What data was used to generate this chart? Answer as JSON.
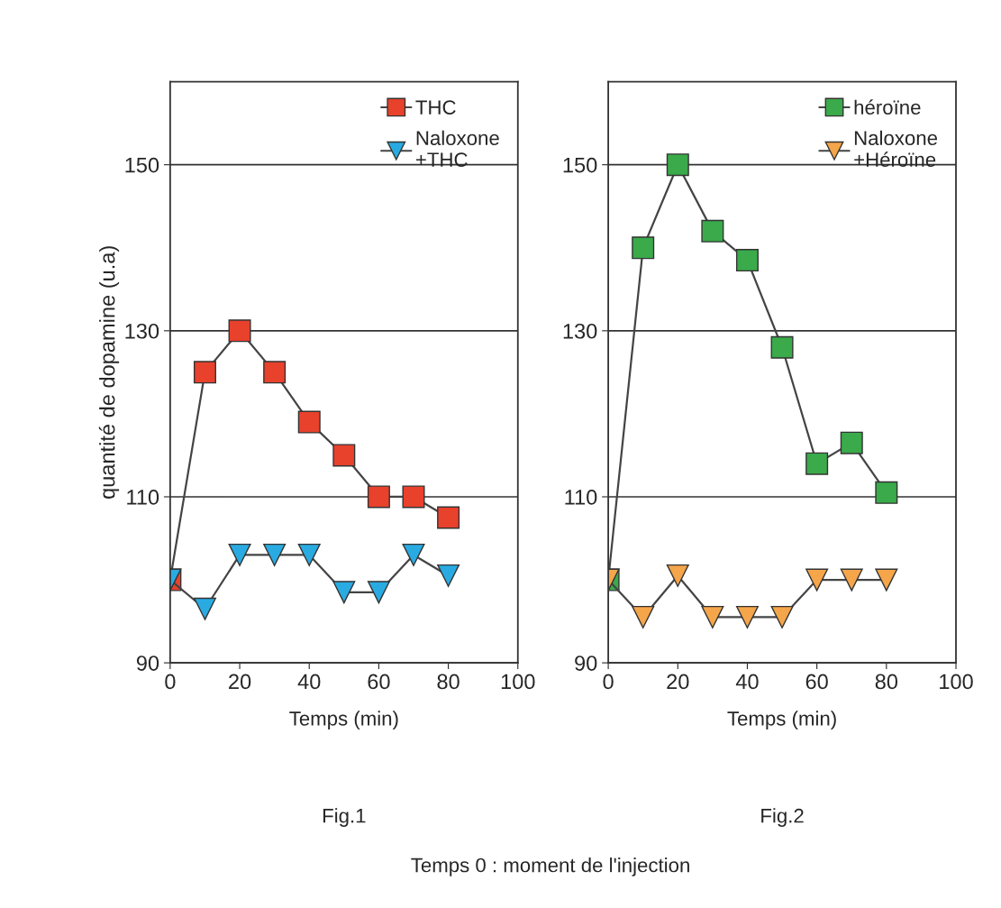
{
  "chart_data": [
    {
      "type": "line",
      "ylabel": "quantité de dopamine (u.a)",
      "xlabel": "Temps (min)",
      "annotations": [
        "Fig.1"
      ],
      "x": [
        0,
        10,
        20,
        30,
        40,
        50,
        60,
        70,
        80
      ],
      "xlim": [
        0,
        100
      ],
      "xticks": [
        0,
        20,
        40,
        60,
        80,
        100
      ],
      "ylim": [
        90,
        160
      ],
      "yticks": [
        90,
        110,
        130,
        150
      ],
      "grid": "y",
      "legend": "top right",
      "series": [
        {
          "name": "THC",
          "color": "#e8412c",
          "marker": "square",
          "values": [
            100,
            125,
            130,
            125,
            119,
            115,
            110,
            110,
            107.5
          ]
        },
        {
          "name": "Naloxone\n+THC",
          "color": "#29abe2",
          "marker": "triangle",
          "values": [
            100,
            96.5,
            103,
            103,
            103,
            98.5,
            98.5,
            103,
            100.5
          ]
        }
      ]
    },
    {
      "type": "line",
      "xlabel": "Temps (min)",
      "annotations": [
        "Fig.2",
        "Temps 0 : moment de l'injection"
      ],
      "x": [
        0,
        10,
        20,
        30,
        40,
        50,
        60,
        70,
        80
      ],
      "xlim": [
        0,
        100
      ],
      "xticks": [
        0,
        20,
        40,
        60,
        80,
        100
      ],
      "ylim": [
        90,
        160
      ],
      "yticks": [
        90,
        110,
        130,
        150
      ],
      "grid": "y",
      "legend": "top right",
      "series": [
        {
          "name": "héroïne",
          "color": "#3aaa4a",
          "marker": "square",
          "values": [
            100,
            140,
            150,
            142,
            138.5,
            128,
            114,
            116.5,
            110.5
          ]
        },
        {
          "name": "Naloxone\n+Héroïne",
          "color": "#f5a54a",
          "marker": "triangle",
          "values": [
            100,
            95.5,
            100.5,
            95.5,
            95.5,
            95.5,
            100,
            100,
            100
          ]
        }
      ]
    }
  ]
}
